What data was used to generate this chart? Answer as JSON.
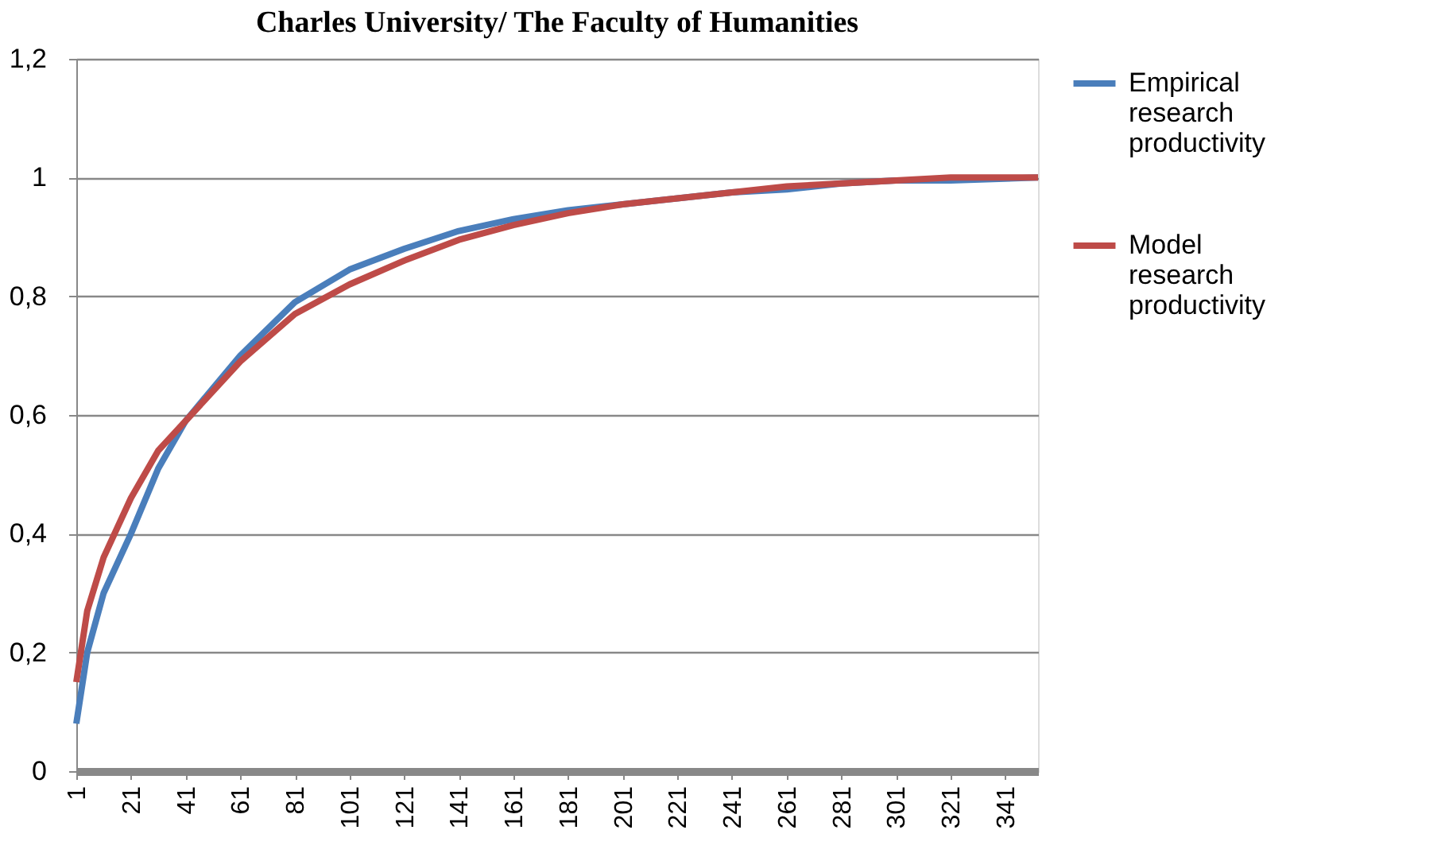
{
  "chart_data": {
    "type": "line",
    "title": "Charles University/ The Faculty of Humanities",
    "x": [
      1,
      5,
      11,
      21,
      31,
      41,
      61,
      81,
      101,
      121,
      141,
      161,
      181,
      201,
      221,
      241,
      261,
      281,
      301,
      321,
      353
    ],
    "series": [
      {
        "name": "Empirical research productivity",
        "color": "#4a7ebb",
        "values": [
          0.08,
          0.2,
          0.3,
          0.4,
          0.51,
          0.59,
          0.7,
          0.79,
          0.845,
          0.88,
          0.91,
          0.93,
          0.945,
          0.955,
          0.965,
          0.975,
          0.98,
          0.99,
          0.995,
          0.995,
          1.0
        ]
      },
      {
        "name": "Model research productivity",
        "color": "#be4b48",
        "values": [
          0.15,
          0.27,
          0.36,
          0.46,
          0.54,
          0.59,
          0.69,
          0.77,
          0.82,
          0.86,
          0.895,
          0.92,
          0.94,
          0.955,
          0.965,
          0.975,
          0.985,
          0.99,
          0.995,
          1.0,
          1.0
        ]
      }
    ],
    "xlim": [
      1,
      353
    ],
    "xticks": [
      1,
      21,
      41,
      61,
      81,
      101,
      121,
      141,
      161,
      181,
      201,
      221,
      241,
      261,
      281,
      301,
      321,
      341
    ],
    "ylim": [
      0,
      1.2
    ],
    "yticks": [
      0,
      {
        "value": 0.2,
        "label": "0,2"
      },
      {
        "value": 0.4,
        "label": "0,4"
      },
      {
        "value": 0.6,
        "label": "0,6"
      },
      {
        "value": 0.8,
        "label": "0,8"
      },
      1,
      {
        "value": 1.2,
        "label": "1,2"
      }
    ],
    "grid": "y",
    "legend": "right",
    "marker": "none",
    "line_style": "solid"
  }
}
